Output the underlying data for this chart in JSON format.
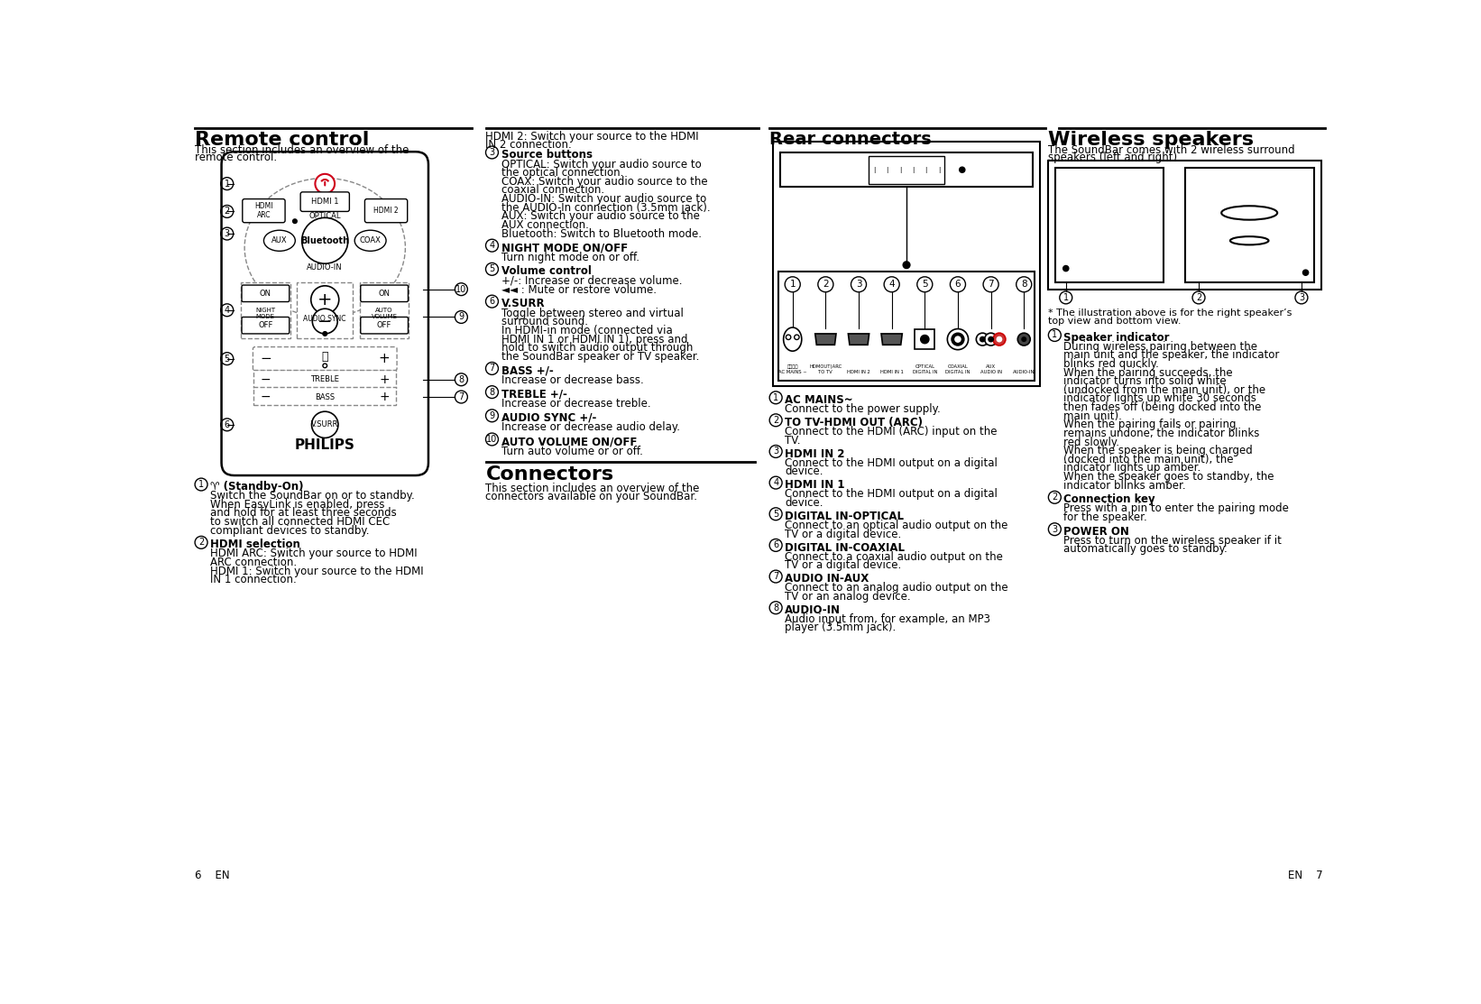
{
  "bg_color": "#ffffff",
  "remote_title": "Remote control",
  "remote_intro": "This section includes an overview of the\nremote control.",
  "connectors_title": "Connectors",
  "connectors_intro": "This section includes an overview of the\nconnectors available on your SoundBar.",
  "rear_title": "Rear connectors",
  "wireless_title": "Wireless speakers",
  "wireless_intro": "The SoundBar comes with 2 wireless surround\nspeakers (left and right).",
  "wireless_note": "* The illustration above is for the right speaker’s\ntop view and bottom view.",
  "remote_items_right": [
    [
      "3",
      "Source buttons",
      "OPTICAL: Switch your audio source to\nthe optical connection.\nCOAX: Switch your audio source to the\ncoaxial connection.\nAUDIO-IN: Switch your audio source to\nthe AUDIO-In connection (3.5mm jack).\nAUX: Switch your audio source to the\nAUX connection.\nBluetooth: Switch to Bluetooth mode."
    ],
    [
      "4",
      "NIGHT MODE ON/OFF",
      "Turn night mode on or off."
    ],
    [
      "5",
      "Volume control",
      "+/-: Increase or decrease volume.\n◄◄ : Mute or restore volume."
    ],
    [
      "6",
      "V.SURR",
      "Toggle between stereo and virtual\nsurround sound.\nIn HDMI-in mode (connected via\nHDMI IN 1 or HDMI IN 1), press and\nhold to switch audio output through\nthe SoundBar speaker or TV speaker."
    ],
    [
      "7",
      "BASS +/-",
      "Increase or decrease bass."
    ],
    [
      "8",
      "TREBLE +/-",
      "Increase or decrease treble."
    ],
    [
      "9",
      "AUDIO SYNC +/-",
      "Increase or decrease audio delay."
    ],
    [
      "10",
      "AUTO VOLUME ON/OFF",
      "Turn auto volume or or off."
    ]
  ],
  "remote_items_left_bottom": [
    [
      "1",
      "♈ (Standby-On)",
      "Switch the SoundBar on or to standby.\nWhen EasyLink is enabled, press\nand hold for at least three seconds\nto switch all connected HDMI CEC\ncompliant devices to standby."
    ],
    [
      "2",
      "HDMI selection",
      "HDMI ARC: Switch your source to HDMI\nARC connection.\nHDMI 1: Switch your source to the HDMI\nIN 1 connection."
    ]
  ],
  "rear_items": [
    [
      "1",
      "AC MAINS~",
      "Connect to the power supply."
    ],
    [
      "2",
      "TO TV-HDMI OUT (ARC)",
      "Connect to the HDMI (ARC) input on the\nTV."
    ],
    [
      "3",
      "HDMI IN 2",
      "Connect to the HDMI output on a digital\ndevice."
    ],
    [
      "4",
      "HDMI IN 1",
      "Connect to the HDMI output on a digital\ndevice."
    ],
    [
      "5",
      "DIGITAL IN-OPTICAL",
      "Connect to an optical audio output on the\nTV or a digital device."
    ],
    [
      "6",
      "DIGITAL IN-COAXIAL",
      "Connect to a coaxial audio output on the\nTV or a digital device."
    ],
    [
      "7",
      "AUDIO IN-AUX",
      "Connect to an analog audio output on the\nTV or an analog device."
    ],
    [
      "8",
      "AUDIO-IN",
      "Audio input from, for example, an MP3\nplayer (3.5mm jack)."
    ]
  ],
  "wireless_items": [
    [
      "1",
      "Speaker indicator",
      "During wireless pairing between the\nmain unit and the speaker, the indicator\nblinks red quickly.\nWhen the pairing succeeds, the\nindicator turns into solid white\n(undocked from the main unit), or the\nindicator lights up white 30 seconds\nthen fades off (being docked into the\nmain unit).\nWhen the pairing fails or pairing\nremains undone, the indicator blinks\nred slowly.\nWhen the speaker is being charged\n(docked into the main unit), the\nindicator lights up amber.\nWhen the speaker goes to standby, the\nindicator blinks amber."
    ],
    [
      "2",
      "Connection key",
      "Press with a pin to enter the pairing mode\nfor the speaker."
    ],
    [
      "3",
      "POWER ON",
      "Press to turn on the wireless speaker if it\nautomatically goes to standby."
    ]
  ],
  "footer_left": "6    EN",
  "footer_right": "EN    7"
}
